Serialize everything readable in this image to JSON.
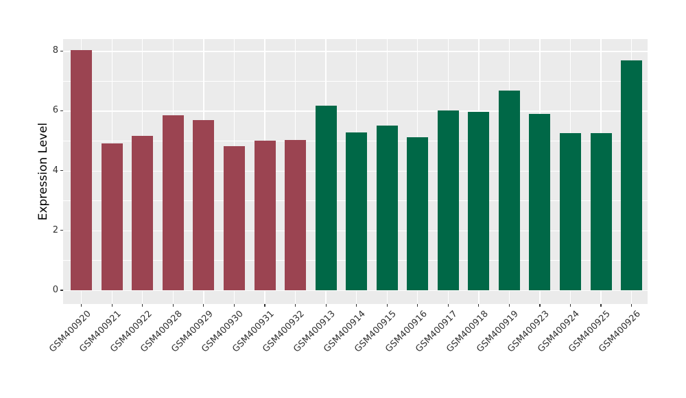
{
  "chart_data": {
    "type": "bar",
    "title": "",
    "xlabel": "",
    "ylabel": "Expression Level",
    "categories": [
      "GSM400920",
      "GSM400921",
      "GSM400922",
      "GSM400928",
      "GSM400929",
      "GSM400930",
      "GSM400931",
      "GSM400932",
      "GSM400913",
      "GSM400914",
      "GSM400915",
      "GSM400916",
      "GSM400917",
      "GSM400918",
      "GSM400919",
      "GSM400923",
      "GSM400924",
      "GSM400925",
      "GSM400926"
    ],
    "values": [
      8.02,
      4.91,
      5.15,
      5.86,
      5.69,
      4.81,
      4.99,
      5.02,
      6.16,
      5.27,
      5.5,
      5.12,
      6.01,
      5.96,
      6.67,
      5.89,
      5.26,
      5.26,
      7.68
    ],
    "colors": [
      "#9B4451",
      "#9B4451",
      "#9B4451",
      "#9B4451",
      "#9B4451",
      "#9B4451",
      "#9B4451",
      "#9B4451",
      "#006847",
      "#006847",
      "#006847",
      "#006847",
      "#006847",
      "#006847",
      "#006847",
      "#006847",
      "#006847",
      "#006847",
      "#006847"
    ],
    "group_colors": {
      "left_group": "#9B4451",
      "right_group": "#006847"
    },
    "y_ticks": [
      0,
      2,
      4,
      6,
      8
    ],
    "y_minor_ticks": [
      1,
      3,
      5,
      7
    ],
    "ylim": [
      0,
      8.4
    ],
    "grid": true,
    "legend": "none",
    "panel_background": "#EBEBEB",
    "grid_color": "#FFFFFF"
  }
}
